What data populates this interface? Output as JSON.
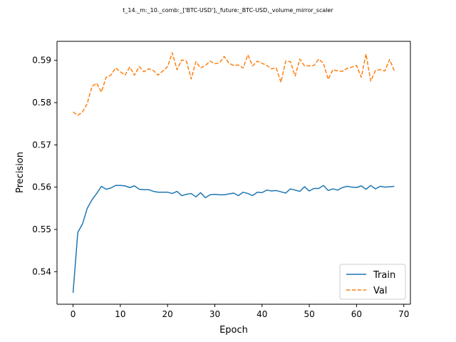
{
  "chart_data": {
    "type": "line",
    "title": "t_14._m:_10._comb:_['BTC-USD'],_future:_BTC-USD,_volume_mirror_scaler",
    "xlabel": "Epoch",
    "ylabel": "Precision",
    "xlim": [
      -3.4,
      71.4
    ],
    "ylim": [
      0.5323,
      0.5945
    ],
    "xticks": [
      0,
      10,
      20,
      30,
      40,
      50,
      60,
      70
    ],
    "yticks": [
      0.54,
      0.55,
      0.56,
      0.57,
      0.58,
      0.59
    ],
    "ytick_labels": [
      "0.54",
      "0.55",
      "0.56",
      "0.57",
      "0.58",
      "0.59"
    ],
    "grid": false,
    "legend_position": "lower-right",
    "series": [
      {
        "name": "Train",
        "color": "#1f77b4",
        "style": "solid",
        "x": [
          0,
          1,
          2,
          3,
          4,
          5,
          6,
          7,
          8,
          9,
          10,
          11,
          12,
          13,
          14,
          15,
          16,
          17,
          18,
          19,
          20,
          21,
          22,
          23,
          24,
          25,
          26,
          27,
          28,
          29,
          30,
          31,
          32,
          33,
          34,
          35,
          36,
          37,
          38,
          39,
          40,
          41,
          42,
          43,
          44,
          45,
          46,
          47,
          48,
          49,
          50,
          51,
          52,
          53,
          54,
          55,
          56,
          57,
          58,
          59,
          60,
          61,
          62,
          63,
          64,
          65,
          66,
          67,
          68
        ],
        "values": [
          0.535,
          0.5493,
          0.5513,
          0.555,
          0.557,
          0.5585,
          0.5602,
          0.5595,
          0.5598,
          0.5604,
          0.5604,
          0.5603,
          0.5599,
          0.5603,
          0.5595,
          0.5594,
          0.5594,
          0.559,
          0.5588,
          0.5588,
          0.5588,
          0.5585,
          0.559,
          0.558,
          0.5583,
          0.5585,
          0.5577,
          0.5587,
          0.5575,
          0.5582,
          0.5583,
          0.5582,
          0.5582,
          0.5584,
          0.5586,
          0.558,
          0.5588,
          0.5585,
          0.558,
          0.5588,
          0.5587,
          0.5593,
          0.5591,
          0.5592,
          0.5589,
          0.5586,
          0.5596,
          0.5593,
          0.559,
          0.5601,
          0.5591,
          0.5597,
          0.5597,
          0.5604,
          0.5592,
          0.5596,
          0.5593,
          0.5599,
          0.5602,
          0.56,
          0.5599,
          0.5603,
          0.5595,
          0.5604,
          0.5596,
          0.5602,
          0.56,
          0.5601,
          0.5602
        ]
      },
      {
        "name": "Val",
        "color": "#ff7f0e",
        "style": "dashed",
        "x": [
          0,
          1,
          2,
          3,
          4,
          5,
          6,
          7,
          8,
          9,
          10,
          11,
          12,
          13,
          14,
          15,
          16,
          17,
          18,
          19,
          20,
          21,
          22,
          23,
          24,
          25,
          26,
          27,
          28,
          29,
          30,
          31,
          32,
          33,
          34,
          35,
          36,
          37,
          38,
          39,
          40,
          41,
          42,
          43,
          44,
          45,
          46,
          47,
          48,
          49,
          50,
          51,
          52,
          53,
          54,
          55,
          56,
          57,
          58,
          59,
          60,
          61,
          62,
          63,
          64,
          65,
          66,
          67,
          68
        ],
        "values": [
          0.5778,
          0.577,
          0.5778,
          0.5798,
          0.5838,
          0.5846,
          0.5825,
          0.586,
          0.5865,
          0.5882,
          0.5873,
          0.5865,
          0.5884,
          0.5865,
          0.5885,
          0.5873,
          0.588,
          0.5876,
          0.5865,
          0.5875,
          0.5885,
          0.5918,
          0.5878,
          0.5901,
          0.5898,
          0.5856,
          0.5897,
          0.5882,
          0.5888,
          0.5898,
          0.5892,
          0.5894,
          0.5909,
          0.5893,
          0.5888,
          0.5889,
          0.5882,
          0.5913,
          0.5887,
          0.5898,
          0.5893,
          0.5888,
          0.588,
          0.5882,
          0.5848,
          0.5898,
          0.5897,
          0.5863,
          0.5903,
          0.5887,
          0.5887,
          0.5888,
          0.5903,
          0.5893,
          0.5855,
          0.5878,
          0.5875,
          0.5874,
          0.5881,
          0.5884,
          0.5888,
          0.586,
          0.5915,
          0.5851,
          0.5876,
          0.5878,
          0.5875,
          0.5902,
          0.5875
        ]
      }
    ]
  }
}
